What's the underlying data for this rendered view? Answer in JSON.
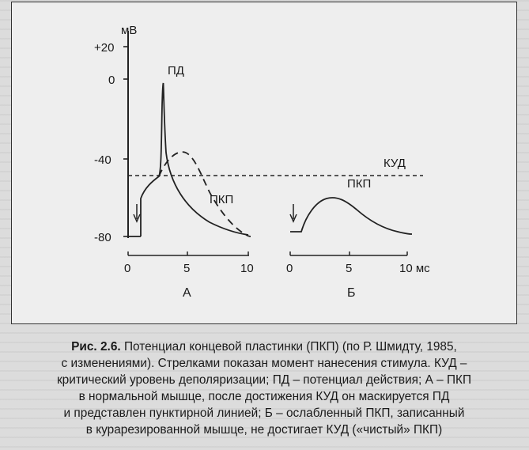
{
  "figure": {
    "panels": [
      {
        "id": "A",
        "label": "А",
        "y_axis": {
          "unit": "мВ",
          "ticks": [
            "+20",
            "0",
            "-40",
            "-80"
          ]
        },
        "x_axis": {
          "ticks": [
            "0",
            "5",
            "10"
          ],
          "unit": ""
        },
        "labels": {
          "ap": "ПД",
          "epp": "ПКП"
        }
      },
      {
        "id": "B",
        "label": "Б",
        "x_axis": {
          "ticks": [
            "0",
            "5",
            "10 мс"
          ]
        },
        "labels": {
          "epp": "ПКП"
        }
      }
    ],
    "threshold_label": "КУД"
  },
  "caption": {
    "figure_number": "Рис. 2.6.",
    "lines": [
      "Потенциал концевой пластинки (ПКП) (по Р. Шмидту, 1985,",
      "с изменениями). Стрелками показан момент нанесения стимула. КУД –",
      "критический уровень деполяризации; ПД – потенциал действия; А – ПКП",
      "в нормальной мышце, после достижения КУД он маскируется ПД",
      "и представлен пунктирной линией; Б – ослабленный ПКП, записанный",
      "в курарезированной мышце, не достигает КУД («чистый» ПКП)"
    ]
  }
}
